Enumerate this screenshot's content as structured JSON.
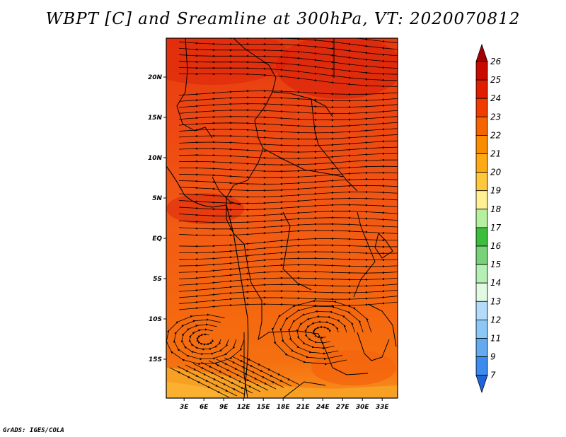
{
  "title": "WBPT [C] and Sreamline at 300hPa, VT: 2020070812",
  "footer": "GrADS: IGES/COLA",
  "map": {
    "variable": "WBPT",
    "units": "C",
    "level": "300hPa",
    "valid_time": "2020070812",
    "lon_labels": [
      "3E",
      "6E",
      "9E",
      "12E",
      "15E",
      "18E",
      "21E",
      "24E",
      "27E",
      "30E",
      "33E"
    ],
    "lat_labels": [
      "20N",
      "15N",
      "10N",
      "5N",
      "EQ",
      "5S",
      "10S",
      "15S"
    ]
  },
  "colorbar": {
    "labels": [
      "26",
      "25",
      "24",
      "23",
      "22",
      "21",
      "20",
      "19",
      "18",
      "17",
      "16",
      "15",
      "14",
      "13",
      "12",
      "11",
      "9",
      "7"
    ],
    "colors": [
      "#a50000",
      "#c80a00",
      "#e11e00",
      "#f03c00",
      "#f56400",
      "#fa8c00",
      "#ffaa14",
      "#ffc83c",
      "#fff096",
      "#b4f0a0",
      "#3cbe3c",
      "#78d278",
      "#b4f0b4",
      "#e1fae1",
      "#b4dcfa",
      "#8cc8f5",
      "#64aaf0",
      "#3c8cf0",
      "#1e64dc"
    ]
  }
}
